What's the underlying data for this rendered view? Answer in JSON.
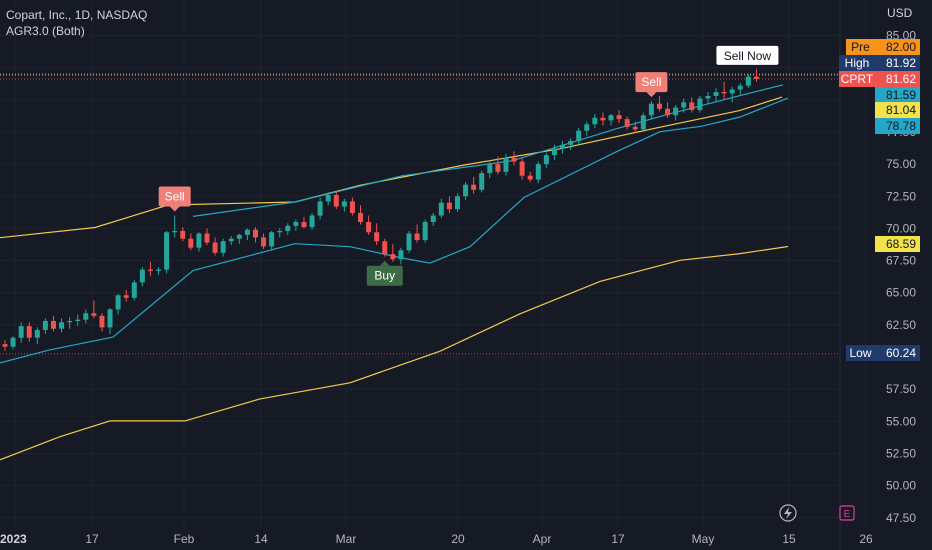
{
  "header": {
    "symbol_line": "Copart, Inc., 1D, NASDAQ",
    "indicator_line": "AGR3.0 (Both)"
  },
  "currency": "USD",
  "colors": {
    "background": "#161a25",
    "grid": "#1f2330",
    "up": "#26a69a",
    "down": "#ef5350",
    "bollinger": "#26a6c6",
    "ma": "#f2c94c",
    "sell_tag": "#f07f78",
    "buy_tag": "#3d6b45"
  },
  "chart_data": {
    "type": "candlestick",
    "title": "Copart, Inc., 1D, NASDAQ",
    "currency": "USD",
    "y_ticks": [
      85.0,
      82.5,
      80.0,
      77.5,
      75.0,
      72.5,
      70.0,
      67.5,
      65.0,
      62.5,
      60.0,
      57.5,
      55.0,
      52.5,
      50.0,
      47.5
    ],
    "ylim": [
      46.7,
      86.6
    ],
    "x_ticks": [
      "2023",
      "17",
      "Feb",
      "14",
      "Mar",
      "20",
      "Apr",
      "17",
      "May",
      "15",
      "26"
    ],
    "candles": [
      [
        61.0,
        61.3,
        60.5,
        60.8
      ],
      [
        60.8,
        61.6,
        60.6,
        61.5
      ],
      [
        61.5,
        62.7,
        61.1,
        62.4
      ],
      [
        62.4,
        62.7,
        61.2,
        61.5
      ],
      [
        61.5,
        62.3,
        61.0,
        62.1
      ],
      [
        62.1,
        63.0,
        61.8,
        62.8
      ],
      [
        62.8,
        63.2,
        62.0,
        62.2
      ],
      [
        62.2,
        63.0,
        61.9,
        62.7
      ],
      [
        62.7,
        63.1,
        62.2,
        62.8
      ],
      [
        62.8,
        63.3,
        62.4,
        62.9
      ],
      [
        62.9,
        63.7,
        62.6,
        63.4
      ],
      [
        63.4,
        64.4,
        63.0,
        63.2
      ],
      [
        63.2,
        63.4,
        62.0,
        62.3
      ],
      [
        62.3,
        63.8,
        61.8,
        63.7
      ],
      [
        63.7,
        64.9,
        63.3,
        64.8
      ],
      [
        64.8,
        65.2,
        64.3,
        64.6
      ],
      [
        64.6,
        66.0,
        64.4,
        65.8
      ],
      [
        65.8,
        67.0,
        65.5,
        66.8
      ],
      [
        66.8,
        67.4,
        66.3,
        66.7
      ],
      [
        66.7,
        67.0,
        66.4,
        66.8
      ],
      [
        66.8,
        69.8,
        66.5,
        69.7
      ],
      [
        69.7,
        71.0,
        69.3,
        69.8
      ],
      [
        69.8,
        70.1,
        69.0,
        69.2
      ],
      [
        69.2,
        69.6,
        68.3,
        68.5
      ],
      [
        68.5,
        69.7,
        68.2,
        69.6
      ],
      [
        69.6,
        70.0,
        68.7,
        68.9
      ],
      [
        68.9,
        69.3,
        67.9,
        68.1
      ],
      [
        68.1,
        69.2,
        67.8,
        69.0
      ],
      [
        69.0,
        69.4,
        68.7,
        69.2
      ],
      [
        69.2,
        69.6,
        68.8,
        69.5
      ],
      [
        69.5,
        70.0,
        69.1,
        69.9
      ],
      [
        69.9,
        70.1,
        68.9,
        69.3
      ],
      [
        69.3,
        69.6,
        68.4,
        68.6
      ],
      [
        68.6,
        69.8,
        68.3,
        69.7
      ],
      [
        69.7,
        70.0,
        69.3,
        69.8
      ],
      [
        69.8,
        70.4,
        69.5,
        70.2
      ],
      [
        70.2,
        70.7,
        69.8,
        70.5
      ],
      [
        70.5,
        70.9,
        70.0,
        70.1
      ],
      [
        70.1,
        71.2,
        69.9,
        71.0
      ],
      [
        71.0,
        72.4,
        70.7,
        72.1
      ],
      [
        72.1,
        72.8,
        71.8,
        72.6
      ],
      [
        72.6,
        72.9,
        71.5,
        71.7
      ],
      [
        71.7,
        72.3,
        71.3,
        72.1
      ],
      [
        72.1,
        72.4,
        71.0,
        71.2
      ],
      [
        71.2,
        71.8,
        70.3,
        70.5
      ],
      [
        70.5,
        71.0,
        69.5,
        69.7
      ],
      [
        69.7,
        70.4,
        68.7,
        69.0
      ],
      [
        69.0,
        69.2,
        67.8,
        68.0
      ],
      [
        68.0,
        68.8,
        67.4,
        67.6
      ],
      [
        67.6,
        68.5,
        67.2,
        68.3
      ],
      [
        68.3,
        69.8,
        68.1,
        69.6
      ],
      [
        69.6,
        70.3,
        68.9,
        69.1
      ],
      [
        69.1,
        70.7,
        68.9,
        70.5
      ],
      [
        70.5,
        71.2,
        70.2,
        71.0
      ],
      [
        71.0,
        72.3,
        70.8,
        72.0
      ],
      [
        72.0,
        72.5,
        71.2,
        71.5
      ],
      [
        71.5,
        72.7,
        71.3,
        72.5
      ],
      [
        72.5,
        73.6,
        72.2,
        73.4
      ],
      [
        73.4,
        74.0,
        72.7,
        73.0
      ],
      [
        73.0,
        74.5,
        72.8,
        74.3
      ],
      [
        74.3,
        75.3,
        73.9,
        75.0
      ],
      [
        75.0,
        75.6,
        74.2,
        74.4
      ],
      [
        74.4,
        75.8,
        74.1,
        75.5
      ],
      [
        75.5,
        76.0,
        74.9,
        75.2
      ],
      [
        75.2,
        75.5,
        73.8,
        74.1
      ],
      [
        74.1,
        74.4,
        73.6,
        73.8
      ],
      [
        73.8,
        75.2,
        73.5,
        75.0
      ],
      [
        75.0,
        75.9,
        74.7,
        75.7
      ],
      [
        75.7,
        76.5,
        75.3,
        76.2
      ],
      [
        76.2,
        76.8,
        75.8,
        76.5
      ],
      [
        76.5,
        77.0,
        76.1,
        76.8
      ],
      [
        76.8,
        77.8,
        76.5,
        77.6
      ],
      [
        77.6,
        78.3,
        77.2,
        78.1
      ],
      [
        78.1,
        78.9,
        77.8,
        78.6
      ],
      [
        78.6,
        79.0,
        78.0,
        78.4
      ],
      [
        78.4,
        78.9,
        78.0,
        78.8
      ],
      [
        78.8,
        79.2,
        78.2,
        78.5
      ],
      [
        78.5,
        78.7,
        77.7,
        77.9
      ],
      [
        77.9,
        78.3,
        77.4,
        77.7
      ],
      [
        77.7,
        79.0,
        77.5,
        78.8
      ],
      [
        78.8,
        79.9,
        78.5,
        79.7
      ],
      [
        79.7,
        80.3,
        79.1,
        79.3
      ],
      [
        79.3,
        79.8,
        78.6,
        78.8
      ],
      [
        78.8,
        79.6,
        78.4,
        79.4
      ],
      [
        79.4,
        80.1,
        79.0,
        79.8
      ],
      [
        79.8,
        80.2,
        79.0,
        79.2
      ],
      [
        79.2,
        80.3,
        79.0,
        80.1
      ],
      [
        80.1,
        80.6,
        79.7,
        80.3
      ],
      [
        80.3,
        80.9,
        79.9,
        80.6
      ],
      [
        80.6,
        81.4,
        80.0,
        80.5
      ],
      [
        80.5,
        81.0,
        79.8,
        80.8
      ],
      [
        80.8,
        81.3,
        80.4,
        81.1
      ],
      [
        81.1,
        82.0,
        80.9,
        81.8
      ],
      [
        81.8,
        82.4,
        81.4,
        81.62
      ]
    ],
    "bollinger_upper": [
      [
        193,
        70.93
      ],
      [
        295,
        72.05
      ],
      [
        402,
        74.09
      ],
      [
        512,
        75.26
      ],
      [
        617,
        77.76
      ],
      [
        668,
        78.87
      ],
      [
        740,
        80.33
      ],
      [
        783,
        81.17
      ]
    ],
    "bollinger_lower": [
      [
        0,
        59.54
      ],
      [
        50,
        60.56
      ],
      [
        113,
        61.55
      ],
      [
        193,
        66.72
      ],
      [
        295,
        68.81
      ],
      [
        350,
        68.58
      ],
      [
        400,
        67.73
      ],
      [
        430,
        67.3
      ],
      [
        470,
        68.58
      ],
      [
        524,
        72.4
      ],
      [
        617,
        75.99
      ],
      [
        660,
        77.52
      ],
      [
        702,
        77.95
      ],
      [
        740,
        78.66
      ],
      [
        788,
        80.13
      ]
    ],
    "ma_upper": [
      [
        0,
        69.28
      ],
      [
        95,
        70.07
      ],
      [
        168,
        71.82
      ],
      [
        295,
        72.05
      ],
      [
        360,
        73.35
      ],
      [
        465,
        74.94
      ],
      [
        560,
        76.19
      ],
      [
        660,
        77.87
      ],
      [
        739,
        79.15
      ],
      [
        782,
        80.21
      ]
    ],
    "ma_lower": [
      [
        0,
        52.01
      ],
      [
        60,
        53.8
      ],
      [
        110,
        55.03
      ],
      [
        185,
        55.03
      ],
      [
        260,
        56.74
      ],
      [
        350,
        57.99
      ],
      [
        440,
        60.45
      ],
      [
        520,
        63.36
      ],
      [
        600,
        65.88
      ],
      [
        680,
        67.52
      ],
      [
        740,
        68.04
      ],
      [
        788,
        68.59
      ]
    ],
    "signals": [
      {
        "type": "Sell",
        "candle": 21
      },
      {
        "type": "Buy",
        "candle": 47
      },
      {
        "type": "Sell",
        "candle": 80
      },
      {
        "type": "Sell Now",
        "candle": 93
      }
    ],
    "price_lines": [
      {
        "label": "Pre",
        "value": "82.00",
        "price": 82.0
      },
      {
        "label": "High",
        "value": "81.92",
        "price": 81.92
      },
      {
        "label": "CPRT",
        "value": "81.62",
        "price": 81.62
      },
      {
        "label": "",
        "value": "81.59",
        "price": 81.59
      },
      {
        "label": "",
        "value": "81.04",
        "price": 81.04
      },
      {
        "label": "",
        "value": "78.78",
        "price": 78.78
      },
      {
        "label": "",
        "value": "68.59",
        "price": 68.59
      },
      {
        "label": "Low",
        "value": "60.24",
        "price": 60.24
      }
    ]
  }
}
